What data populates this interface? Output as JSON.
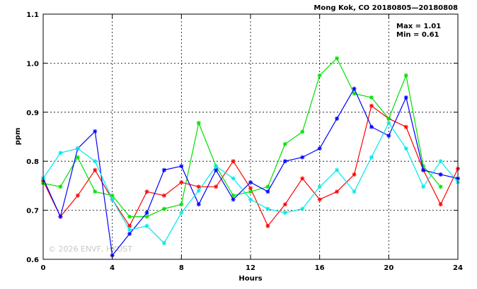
{
  "chart_data": {
    "type": "line",
    "title": "Mong Kok, CO 20180805—20180808",
    "xlabel": "Hours",
    "ylabel": "ppm",
    "xlim": [
      0,
      24
    ],
    "ylim": [
      0.6,
      1.1
    ],
    "x_ticks": [
      "0",
      "4",
      "8",
      "12",
      "16",
      "20",
      "24"
    ],
    "y_ticks": [
      "0.6",
      "0.7",
      "0.8",
      "0.9",
      "1.0",
      "1.1"
    ],
    "grid": true,
    "stats": {
      "max": "Max = 1.01",
      "min": "Min = 0.61"
    },
    "watermark": "© 2026  ENVF, HKUST",
    "x": [
      0,
      1,
      2,
      3,
      4,
      5,
      6,
      7,
      8,
      9,
      10,
      11,
      12,
      13,
      14,
      15,
      16,
      17,
      18,
      19,
      20,
      21,
      22,
      23,
      24
    ],
    "series": [
      {
        "color": "#ff0000",
        "values": [
          0.76,
          0.687,
          0.73,
          0.782,
          0.722,
          0.668,
          0.738,
          0.73,
          0.757,
          0.748,
          0.748,
          0.8,
          0.745,
          0.668,
          0.712,
          0.765,
          0.722,
          0.738,
          0.773,
          0.913,
          0.887,
          0.87,
          0.782,
          0.712,
          0.785
        ]
      },
      {
        "color": "#00e000",
        "values": [
          0.755,
          0.748,
          0.808,
          0.738,
          0.73,
          0.687,
          0.687,
          0.703,
          0.712,
          0.878,
          0.79,
          0.73,
          0.738,
          0.748,
          0.835,
          0.86,
          0.975,
          1.01,
          0.938,
          0.93,
          0.887,
          0.975,
          0.79,
          0.748,
          null
        ]
      },
      {
        "color": "#0000ff",
        "values": [
          0.765,
          0.687,
          0.826,
          0.861,
          0.608,
          0.652,
          0.695,
          0.782,
          0.79,
          0.712,
          0.782,
          0.722,
          0.757,
          0.738,
          0.8,
          0.808,
          0.826,
          0.887,
          0.948,
          0.87,
          0.852,
          0.93,
          0.782,
          0.773,
          0.765
        ]
      },
      {
        "color": "#00e8e8",
        "values": [
          0.765,
          0.817,
          0.826,
          0.8,
          0.722,
          0.66,
          0.668,
          0.633,
          0.695,
          0.74,
          0.79,
          0.765,
          0.722,
          0.703,
          0.695,
          0.703,
          0.748,
          0.782,
          0.738,
          0.808,
          0.878,
          0.826,
          0.748,
          0.8,
          0.757
        ]
      }
    ]
  }
}
